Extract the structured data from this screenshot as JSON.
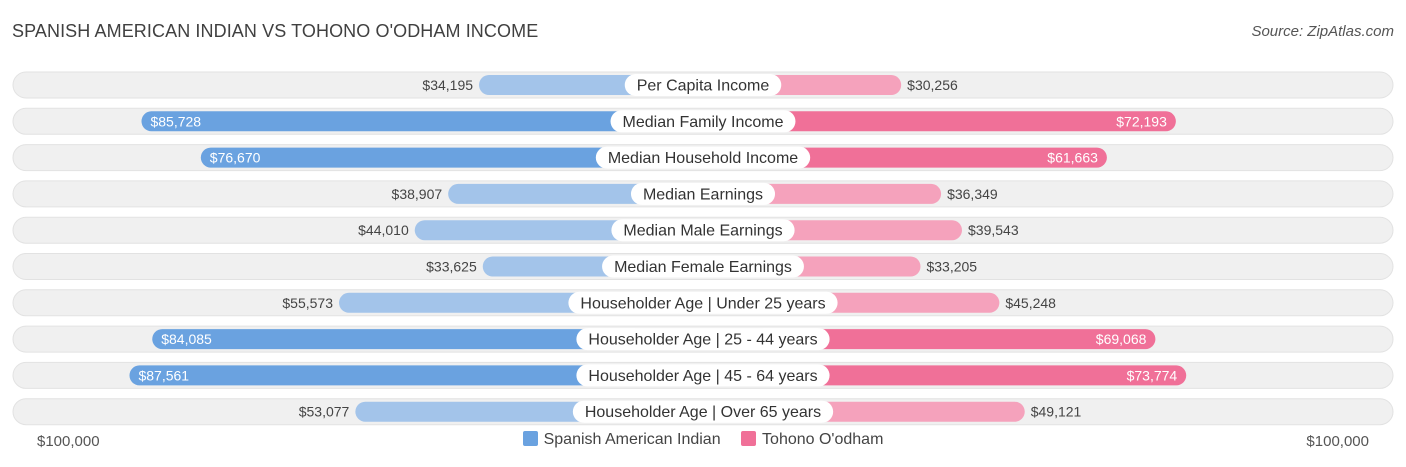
{
  "title": "SPANISH AMERICAN INDIAN VS TOHONO O'ODHAM INCOME",
  "source": "Source: ZipAtlas.com",
  "colors": {
    "left_strong": "#6aa2e0",
    "left_light": "#a3c4ea",
    "right_strong": "#f07098",
    "right_light": "#f5a2bc",
    "row_bg": "#f0f0f0"
  },
  "chart_data": {
    "type": "bar",
    "orientation": "horizontal-diverging",
    "title": "SPANISH AMERICAN INDIAN VS TOHONO O'ODHAM INCOME",
    "xlim": [
      -100000,
      100000
    ],
    "axis_left_label": "$100,000",
    "axis_right_label": "$100,000",
    "legend_position": "bottom-center",
    "categories": [
      "Per Capita Income",
      "Median Family Income",
      "Median Household Income",
      "Median Earnings",
      "Median Male Earnings",
      "Median Female Earnings",
      "Householder Age | Under 25 years",
      "Householder Age | 25 - 44 years",
      "Householder Age | 45 - 64 years",
      "Householder Age | Over 65 years"
    ],
    "series": [
      {
        "name": "Spanish American Indian",
        "values": [
          34195,
          85728,
          76670,
          38907,
          44010,
          33625,
          55573,
          84085,
          87561,
          53077
        ],
        "labels": [
          "$34,195",
          "$85,728",
          "$76,670",
          "$38,907",
          "$44,010",
          "$33,625",
          "$55,573",
          "$84,085",
          "$87,561",
          "$53,077"
        ]
      },
      {
        "name": "Tohono O'odham",
        "values": [
          30256,
          72193,
          61663,
          36349,
          39543,
          33205,
          45248,
          69068,
          73774,
          49121
        ],
        "labels": [
          "$30,256",
          "$72,193",
          "$61,663",
          "$36,349",
          "$39,543",
          "$33,205",
          "$45,248",
          "$69,068",
          "$73,774",
          "$49,121"
        ]
      }
    ]
  }
}
